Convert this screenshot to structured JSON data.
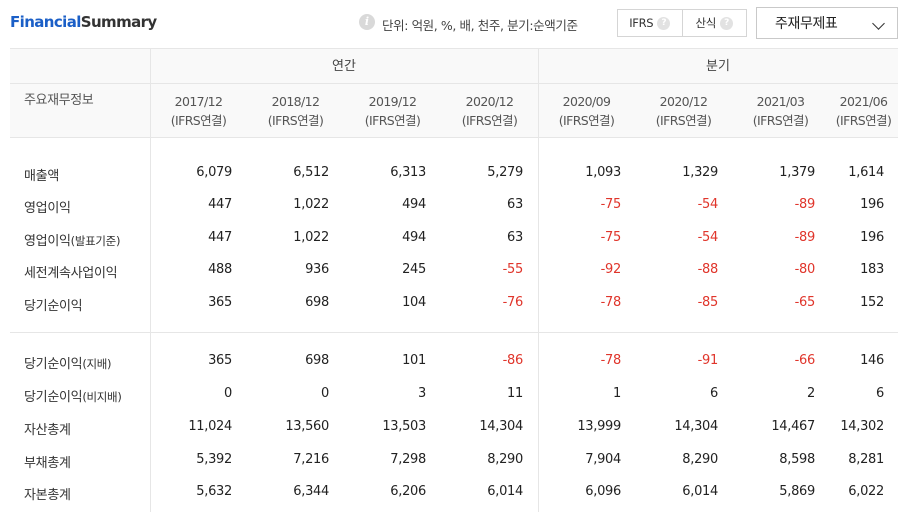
{
  "title": {
    "part1": "Financial",
    "part2": "Summary"
  },
  "unit_text": "단위: 억원, %, 배, 천주, 분기:순액기준",
  "std_options": [
    {
      "label": "IFRS"
    },
    {
      "label": "산식"
    }
  ],
  "select": {
    "value": "주재무제표"
  },
  "colors": {
    "title_blue": "#1b5fc7",
    "negative": "#e0352b",
    "header_bg": "#f9f9f9"
  },
  "table": {
    "row_header_label": "주요재무정보",
    "groups": [
      "연간",
      "분기"
    ],
    "columns": [
      {
        "period": "2017/12",
        "basis": "(IFRS연결)"
      },
      {
        "period": "2018/12",
        "basis": "(IFRS연결)"
      },
      {
        "period": "2019/12",
        "basis": "(IFRS연결)"
      },
      {
        "period": "2020/12",
        "basis": "(IFRS연결)"
      },
      {
        "period": "2020/09",
        "basis": "(IFRS연결)"
      },
      {
        "period": "2020/12",
        "basis": "(IFRS연결)"
      },
      {
        "period": "2021/03",
        "basis": "(IFRS연결)"
      },
      {
        "period": "2021/06",
        "basis": "(IFRS연결)"
      }
    ],
    "rows": [
      {
        "label": "매출액",
        "sub": "",
        "values": [
          "6,079",
          "6,512",
          "6,313",
          "5,279",
          "1,093",
          "1,329",
          "1,379",
          "1,614"
        ]
      },
      {
        "label": "영업이익",
        "sub": "",
        "values": [
          "447",
          "1,022",
          "494",
          "63",
          "-75",
          "-54",
          "-89",
          "196"
        ]
      },
      {
        "label": "영업이익",
        "sub": "(발표기준)",
        "values": [
          "447",
          "1,022",
          "494",
          "63",
          "-75",
          "-54",
          "-89",
          "196"
        ]
      },
      {
        "label": "세전계속사업이익",
        "sub": "",
        "values": [
          "488",
          "936",
          "245",
          "-55",
          "-92",
          "-88",
          "-80",
          "183"
        ]
      },
      {
        "label": "당기순이익",
        "sub": "",
        "values": [
          "365",
          "698",
          "104",
          "-76",
          "-78",
          "-85",
          "-65",
          "152"
        ]
      },
      {
        "label": "당기순이익",
        "sub": "(지배)",
        "values": [
          "365",
          "698",
          "101",
          "-86",
          "-78",
          "-91",
          "-66",
          "146"
        ]
      },
      {
        "label": "당기순이익",
        "sub": "(비지배)",
        "values": [
          "0",
          "0",
          "3",
          "11",
          "1",
          "6",
          "2",
          "6"
        ]
      },
      {
        "label": "자산총계",
        "sub": "",
        "values": [
          "11,024",
          "13,560",
          "13,503",
          "14,304",
          "13,999",
          "14,304",
          "14,467",
          "14,302"
        ]
      },
      {
        "label": "부채총계",
        "sub": "",
        "values": [
          "5,392",
          "7,216",
          "7,298",
          "8,290",
          "7,904",
          "8,290",
          "8,598",
          "8,281"
        ]
      },
      {
        "label": "자본총계",
        "sub": "",
        "values": [
          "5,632",
          "6,344",
          "6,206",
          "6,014",
          "6,096",
          "6,014",
          "5,869",
          "6,022"
        ]
      }
    ]
  }
}
